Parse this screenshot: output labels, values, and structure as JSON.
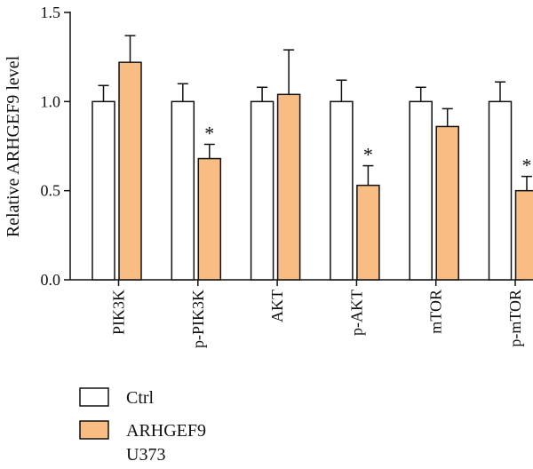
{
  "chart_data": {
    "type": "bar",
    "ylabel": "Relative ARHGEF9 level",
    "ylim": [
      0,
      1.5
    ],
    "yticks": [
      "0.0",
      "0.5",
      "1.0",
      "1.5"
    ],
    "categories": [
      "PIK3K",
      "p-PIK3K",
      "AKT",
      "p-AKT",
      "mTOR",
      "p-mTOR"
    ],
    "series": [
      {
        "name": "Ctrl",
        "values": [
          1.0,
          1.0,
          1.0,
          1.0,
          1.0,
          1.0
        ],
        "errors": [
          0.09,
          0.1,
          0.08,
          0.12,
          0.08,
          0.11
        ],
        "color": "#ffffff"
      },
      {
        "name": "ARHGEF9",
        "values": [
          1.22,
          0.68,
          1.04,
          0.53,
          0.86,
          0.5
        ],
        "errors": [
          0.15,
          0.08,
          0.25,
          0.11,
          0.1,
          0.08
        ],
        "color": "#f9bd83"
      }
    ],
    "significance_marker": "*",
    "significant": [
      false,
      true,
      false,
      true,
      false,
      true
    ],
    "legend_position": "bottom-left",
    "legend_note": "U373"
  }
}
